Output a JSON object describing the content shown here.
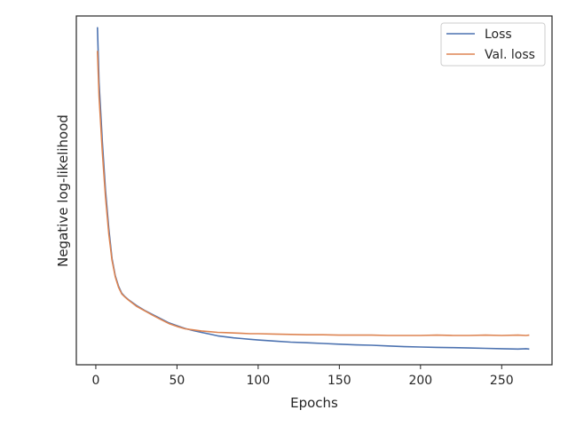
{
  "chart_data": {
    "type": "line",
    "title": "",
    "xlabel": "Epochs",
    "ylabel": "Negative log-likelihood",
    "xlim": [
      -12,
      281
    ],
    "ylim": [
      0,
      1
    ],
    "xticks": [
      0,
      50,
      100,
      150,
      200,
      250
    ],
    "yticks": [],
    "grid": false,
    "legend_position": "top-right",
    "series": [
      {
        "name": "Loss",
        "color": "#4c72b0",
        "x": [
          1,
          2,
          4,
          6,
          8,
          10,
          12,
          14,
          16,
          18,
          20,
          25,
          30,
          35,
          40,
          45,
          50,
          55,
          60,
          65,
          70,
          75,
          80,
          85,
          90,
          95,
          100,
          110,
          120,
          130,
          140,
          150,
          160,
          170,
          180,
          190,
          200,
          210,
          220,
          230,
          240,
          250,
          260,
          265,
          267
        ],
        "y": [
          0.968,
          0.81,
          0.64,
          0.5,
          0.39,
          0.305,
          0.255,
          0.225,
          0.205,
          0.195,
          0.187,
          0.17,
          0.156,
          0.144,
          0.132,
          0.12,
          0.112,
          0.104,
          0.098,
          0.093,
          0.088,
          0.083,
          0.08,
          0.077,
          0.075,
          0.073,
          0.071,
          0.068,
          0.065,
          0.063,
          0.061,
          0.059,
          0.057,
          0.056,
          0.054,
          0.052,
          0.051,
          0.05,
          0.049,
          0.048,
          0.047,
          0.046,
          0.045,
          0.046,
          0.045
        ]
      },
      {
        "name": "Val. loss",
        "color": "#dd8452",
        "x": [
          1,
          2,
          4,
          6,
          8,
          10,
          12,
          14,
          16,
          18,
          20,
          25,
          30,
          35,
          40,
          45,
          50,
          55,
          60,
          65,
          70,
          75,
          80,
          85,
          90,
          95,
          100,
          110,
          120,
          130,
          140,
          150,
          160,
          170,
          180,
          190,
          200,
          210,
          220,
          230,
          240,
          250,
          260,
          265,
          267
        ],
        "y": [
          0.9,
          0.77,
          0.61,
          0.48,
          0.375,
          0.3,
          0.252,
          0.222,
          0.203,
          0.194,
          0.186,
          0.168,
          0.155,
          0.142,
          0.13,
          0.118,
          0.11,
          0.103,
          0.1,
          0.097,
          0.095,
          0.093,
          0.092,
          0.091,
          0.09,
          0.089,
          0.089,
          0.088,
          0.087,
          0.086,
          0.086,
          0.085,
          0.085,
          0.085,
          0.084,
          0.084,
          0.084,
          0.085,
          0.084,
          0.084,
          0.085,
          0.084,
          0.085,
          0.084,
          0.085
        ]
      }
    ]
  }
}
